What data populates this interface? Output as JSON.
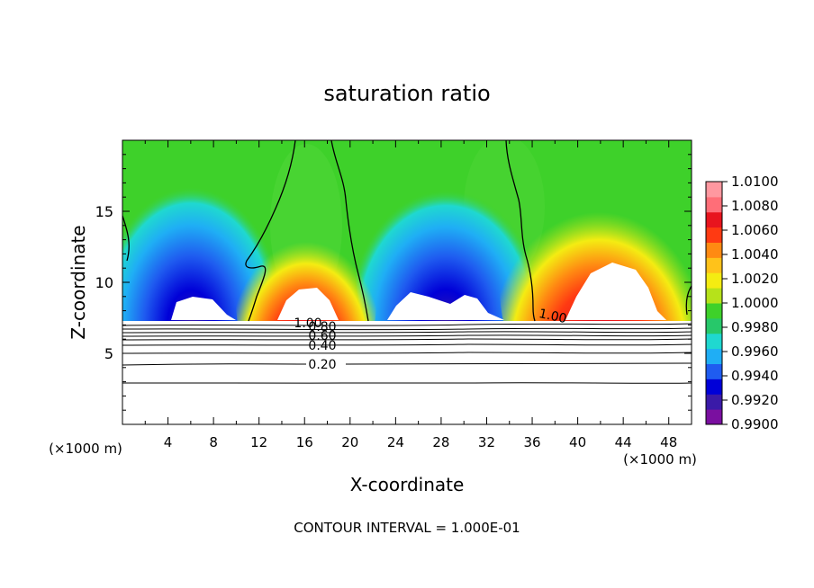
{
  "chart_data": {
    "type": "heatmap",
    "title": "saturation ratio",
    "xlabel": "X-coordinate",
    "ylabel": "Z-coordinate",
    "x_unit_note": "(×1000 m)",
    "y_unit_note": "(×1000 m)",
    "footer": "CONTOUR INTERVAL = 1.000E-01",
    "xlim": [
      0,
      50
    ],
    "ylim": [
      0,
      20
    ],
    "x_ticks": [
      "4",
      "8",
      "12",
      "16",
      "20",
      "24",
      "28",
      "32",
      "36",
      "40",
      "44",
      "48"
    ],
    "y_ticks": [
      "5",
      "10",
      "15"
    ],
    "colorbar": {
      "min": 0.99,
      "max": 1.01,
      "labels": [
        "1.0100",
        "1.0080",
        "1.0060",
        "1.0040",
        "1.0020",
        "1.0000",
        "0.9980",
        "0.9960",
        "0.9940",
        "0.9920",
        "0.9900"
      ],
      "colors": [
        "#7a0fa0",
        "#3a1aa8",
        "#0000d8",
        "#1f5cf0",
        "#1faef5",
        "#1fd8d0",
        "#27c86a",
        "#3ed12a",
        "#b6e21a",
        "#f4ec12",
        "#ffc21a",
        "#ff8a12",
        "#ff3a12",
        "#e8141e",
        "#ff6e78",
        "#ff98a0"
      ]
    },
    "contour_labels": [
      "1.00",
      "0.80",
      "0.60",
      "0.40",
      "0.20",
      "1.00"
    ]
  }
}
